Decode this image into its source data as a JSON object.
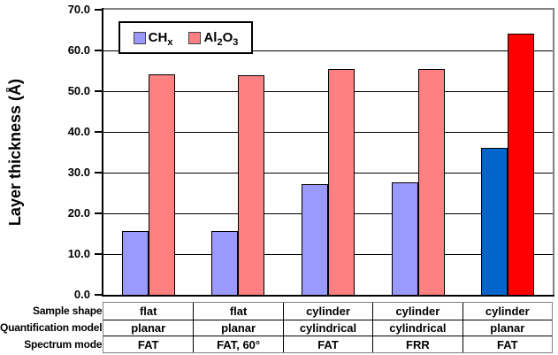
{
  "chart_data": {
    "type": "bar",
    "title": "",
    "xlabel": "",
    "ylabel": "Layer thickness (Å)",
    "ylim": [
      0,
      70
    ],
    "ytick_step": 10,
    "ytick_labels": [
      "0.0",
      "10.0",
      "20.0",
      "30.0",
      "40.0",
      "50.0",
      "60.0",
      "70.0"
    ],
    "grid": true,
    "legend_position": "top-left inside plot",
    "group_count": 5,
    "series": [
      {
        "name": "CHx",
        "label_parts": [
          [
            "CH",
            false
          ],
          [
            "x",
            true
          ]
        ],
        "values": [
          15.7,
          15.7,
          27.2,
          27.6,
          36.0
        ],
        "colors": [
          "#9999FF",
          "#9999FF",
          "#9999FF",
          "#9999FF",
          "#0066CC"
        ]
      },
      {
        "name": "Al2O3",
        "label_parts": [
          [
            "Al",
            false
          ],
          [
            "2",
            true
          ],
          [
            "O",
            false
          ],
          [
            "3",
            true
          ]
        ],
        "values": [
          54.2,
          54.0,
          55.5,
          55.5,
          64.1
        ],
        "colors": [
          "#FF8080",
          "#FF8080",
          "#FF8080",
          "#FF8080",
          "#FF0000"
        ]
      }
    ],
    "category_table": {
      "row_headers": [
        "Sample shape",
        "Quantification model",
        "Spectrum mode"
      ],
      "rows": [
        [
          "flat",
          "flat",
          "cylinder",
          "cylinder",
          "cylinder"
        ],
        [
          "planar",
          "planar",
          "cylindrical",
          "cylindrical",
          "planar"
        ],
        [
          "FAT",
          "FAT, 60°",
          "FAT",
          "FRR",
          "FAT"
        ]
      ]
    },
    "style_colors": {
      "axis": "#000000",
      "plot_border": "#808080",
      "gridline": "#000000",
      "bar_border": "#000000",
      "background": "#FFFFFF"
    }
  }
}
